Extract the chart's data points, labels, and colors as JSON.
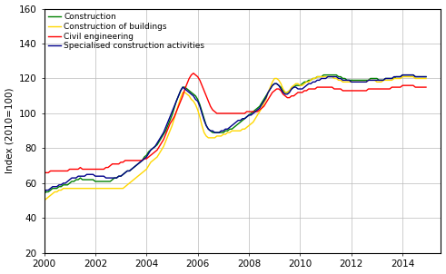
{
  "title": "",
  "ylabel": "Index (2010=100)",
  "ylim": [
    20,
    160
  ],
  "yticks": [
    20,
    40,
    60,
    80,
    100,
    120,
    140,
    160
  ],
  "xlim": [
    2000.0,
    2015.5
  ],
  "xticks": [
    2000,
    2002,
    2004,
    2006,
    2008,
    2010,
    2012,
    2014
  ],
  "legend_labels": [
    "Construction",
    "Construction of buildings",
    "Civil engineering",
    "Specialised construction activities"
  ],
  "colors": [
    "#008000",
    "#FFD700",
    "#FF0000",
    "#00008B"
  ],
  "linewidth": 1.0,
  "background_color": "#FFFFFF",
  "grid_color": "#BBBBBB",
  "series": {
    "construction": [
      54,
      55,
      55,
      56,
      57,
      57,
      57,
      58,
      58,
      59,
      59,
      59,
      60,
      61,
      61,
      62,
      62,
      63,
      62,
      62,
      62,
      62,
      62,
      62,
      61,
      61,
      61,
      61,
      61,
      61,
      61,
      61,
      62,
      63,
      63,
      64,
      64,
      65,
      66,
      67,
      67,
      68,
      69,
      70,
      71,
      72,
      73,
      75,
      76,
      78,
      79,
      80,
      81,
      82,
      84,
      86,
      88,
      90,
      93,
      96,
      99,
      103,
      107,
      110,
      113,
      115,
      115,
      114,
      113,
      112,
      111,
      110,
      108,
      105,
      101,
      97,
      93,
      91,
      90,
      89,
      89,
      89,
      89,
      89,
      89,
      90,
      90,
      91,
      91,
      92,
      93,
      94,
      95,
      96,
      97,
      98,
      99,
      100,
      101,
      102,
      103,
      104,
      106,
      108,
      110,
      112,
      114,
      116,
      117,
      117,
      116,
      115,
      113,
      112,
      112,
      113,
      114,
      115,
      116,
      116,
      116,
      117,
      118,
      118,
      119,
      119,
      120,
      120,
      121,
      121,
      121,
      122,
      122,
      122,
      122,
      122,
      122,
      122,
      121,
      121,
      120,
      120,
      119,
      119,
      119,
      119,
      119,
      119,
      119,
      119,
      119,
      119,
      119,
      120,
      120,
      120,
      120,
      119,
      119,
      119,
      120,
      120,
      120,
      120,
      120,
      121,
      121,
      121,
      122,
      122,
      122,
      122,
      122,
      122,
      121,
      121,
      121,
      121,
      121,
      121
    ],
    "construction_of_buildings": [
      50,
      51,
      52,
      53,
      54,
      55,
      55,
      56,
      56,
      57,
      57,
      57,
      57,
      57,
      57,
      57,
      57,
      57,
      57,
      57,
      57,
      57,
      57,
      57,
      57,
      57,
      57,
      57,
      57,
      57,
      57,
      57,
      57,
      57,
      57,
      57,
      57,
      57,
      58,
      59,
      60,
      61,
      62,
      63,
      64,
      65,
      66,
      67,
      68,
      70,
      72,
      73,
      74,
      75,
      77,
      79,
      81,
      84,
      87,
      90,
      93,
      97,
      101,
      105,
      109,
      112,
      112,
      111,
      110,
      108,
      107,
      105,
      102,
      98,
      93,
      89,
      87,
      86,
      86,
      86,
      86,
      87,
      87,
      87,
      88,
      88,
      89,
      89,
      90,
      90,
      90,
      90,
      90,
      91,
      91,
      92,
      93,
      94,
      95,
      97,
      99,
      101,
      103,
      106,
      108,
      112,
      115,
      118,
      120,
      120,
      119,
      117,
      114,
      112,
      112,
      113,
      115,
      116,
      117,
      117,
      116,
      116,
      117,
      118,
      118,
      119,
      120,
      120,
      121,
      121,
      121,
      121,
      121,
      121,
      121,
      121,
      120,
      120,
      119,
      119,
      118,
      118,
      118,
      118,
      118,
      118,
      118,
      118,
      118,
      118,
      118,
      118,
      119,
      119,
      119,
      119,
      118,
      118,
      118,
      119,
      119,
      119,
      119,
      119,
      120,
      120,
      120,
      120,
      121,
      121,
      121,
      121,
      121,
      121,
      120,
      120,
      120,
      120,
      120,
      120
    ],
    "civil_engineering": [
      66,
      66,
      66,
      67,
      67,
      67,
      67,
      67,
      67,
      67,
      67,
      67,
      68,
      68,
      68,
      68,
      68,
      69,
      68,
      68,
      68,
      68,
      68,
      68,
      68,
      68,
      68,
      68,
      68,
      69,
      69,
      70,
      71,
      71,
      71,
      71,
      72,
      72,
      73,
      73,
      73,
      73,
      73,
      73,
      73,
      73,
      73,
      74,
      74,
      75,
      76,
      77,
      78,
      79,
      81,
      83,
      85,
      88,
      91,
      94,
      96,
      98,
      101,
      104,
      107,
      110,
      114,
      117,
      120,
      122,
      123,
      122,
      121,
      119,
      116,
      113,
      110,
      107,
      104,
      102,
      101,
      100,
      100,
      100,
      100,
      100,
      100,
      100,
      100,
      100,
      100,
      100,
      100,
      100,
      100,
      101,
      101,
      101,
      101,
      101,
      101,
      102,
      103,
      104,
      106,
      108,
      110,
      112,
      113,
      114,
      114,
      113,
      111,
      110,
      109,
      109,
      110,
      110,
      111,
      112,
      112,
      112,
      113,
      113,
      114,
      114,
      114,
      114,
      115,
      115,
      115,
      115,
      115,
      115,
      115,
      115,
      114,
      114,
      114,
      114,
      113,
      113,
      113,
      113,
      113,
      113,
      113,
      113,
      113,
      113,
      113,
      113,
      114,
      114,
      114,
      114,
      114,
      114,
      114,
      114,
      114,
      114,
      114,
      115,
      115,
      115,
      115,
      115,
      116,
      116,
      116,
      116,
      116,
      116,
      115,
      115,
      115,
      115,
      115,
      115
    ],
    "specialised_construction": [
      55,
      56,
      56,
      57,
      58,
      58,
      58,
      59,
      59,
      60,
      60,
      61,
      62,
      63,
      63,
      63,
      64,
      64,
      64,
      64,
      65,
      65,
      65,
      65,
      64,
      64,
      64,
      64,
      64,
      63,
      63,
      63,
      63,
      63,
      63,
      64,
      64,
      65,
      66,
      67,
      67,
      68,
      69,
      70,
      71,
      72,
      73,
      74,
      75,
      77,
      79,
      80,
      81,
      83,
      85,
      87,
      89,
      92,
      95,
      98,
      101,
      104,
      107,
      110,
      113,
      115,
      114,
      113,
      112,
      111,
      110,
      108,
      107,
      104,
      100,
      96,
      93,
      91,
      90,
      90,
      89,
      89,
      89,
      90,
      90,
      91,
      91,
      92,
      93,
      94,
      95,
      96,
      96,
      97,
      97,
      98,
      99,
      99,
      100,
      101,
      102,
      103,
      105,
      107,
      109,
      112,
      114,
      116,
      117,
      117,
      116,
      114,
      112,
      111,
      111,
      112,
      114,
      115,
      115,
      114,
      114,
      114,
      115,
      116,
      117,
      117,
      118,
      118,
      119,
      119,
      120,
      120,
      120,
      121,
      121,
      121,
      121,
      121,
      120,
      120,
      119,
      119,
      119,
      119,
      118,
      118,
      118,
      118,
      118,
      118,
      118,
      118,
      119,
      119,
      119,
      119,
      119,
      119,
      119,
      119,
      120,
      120,
      120,
      120,
      121,
      121,
      121,
      121,
      122,
      122,
      122,
      122,
      122,
      122,
      121,
      121,
      121,
      121,
      121,
      121
    ]
  }
}
